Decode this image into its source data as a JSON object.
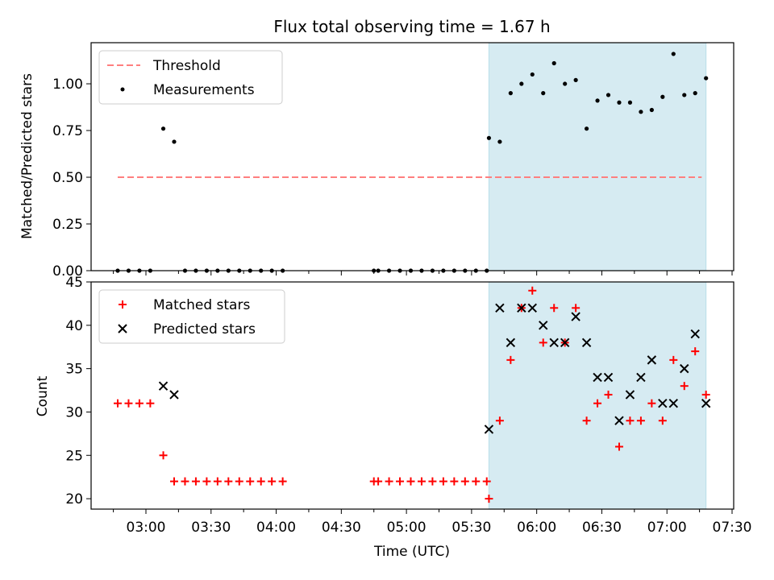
{
  "chart_data": {
    "type": "scatter",
    "title": "Flux total observing time = 1.67 h",
    "xlabel": "Time (UTC)",
    "x_tick_labels": [
      "03:00",
      "03:30",
      "04:00",
      "04:30",
      "05:00",
      "05:30",
      "06:00",
      "06:30",
      "07:00",
      "07:30"
    ],
    "shaded_interval": {
      "start": "05:38",
      "end": "07:18",
      "color": "#add8e6"
    },
    "panels": [
      {
        "ylabel": "Matched/Predicted stars",
        "ylim": [
          0,
          1.22
        ],
        "yticks": [
          "0.00",
          "0.25",
          "0.50",
          "0.75",
          "1.00"
        ],
        "legend_position": "upper left",
        "threshold": {
          "name": "Threshold",
          "value": 0.5,
          "x_range": [
            "02:47",
            "07:16"
          ],
          "color": "#ff7f7f"
        },
        "series": [
          {
            "name": "Measurements",
            "marker": "dot",
            "color": "#000000",
            "x": [
              "02:47",
              "02:52",
              "02:57",
              "03:02",
              "03:08",
              "03:13",
              "03:18",
              "03:23",
              "03:28",
              "03:33",
              "03:38",
              "03:43",
              "03:48",
              "03:53",
              "03:58",
              "04:03",
              "04:45",
              "04:47",
              "04:52",
              "04:57",
              "05:02",
              "05:07",
              "05:12",
              "05:17",
              "05:22",
              "05:27",
              "05:32",
              "05:37",
              "05:38",
              "05:43",
              "05:48",
              "05:53",
              "05:58",
              "06:03",
              "06:08",
              "06:13",
              "06:18",
              "06:23",
              "06:28",
              "06:33",
              "06:38",
              "06:43",
              "06:48",
              "06:53",
              "06:58",
              "07:03",
              "07:08",
              "07:13",
              "07:18"
            ],
            "y": [
              0,
              0,
              0,
              0,
              0.76,
              0.69,
              0,
              0,
              0,
              0,
              0,
              0,
              0,
              0,
              0,
              0,
              0,
              0,
              0,
              0,
              0,
              0,
              0,
              0,
              0,
              0,
              0,
              0,
              0.71,
              0.69,
              0.95,
              1.0,
              1.05,
              0.95,
              1.11,
              1.0,
              1.02,
              0.76,
              0.91,
              0.94,
              0.9,
              0.9,
              0.85,
              0.86,
              0.93,
              1.16,
              0.94,
              0.95,
              1.03
            ]
          }
        ]
      },
      {
        "ylabel": "Count",
        "ylim": [
          18.8,
          45
        ],
        "yticks": [
          "20",
          "25",
          "30",
          "35",
          "40",
          "45"
        ],
        "legend_position": "upper left",
        "series": [
          {
            "name": "Matched stars",
            "marker": "plus",
            "color": "#ff0000",
            "x": [
              "02:47",
              "02:52",
              "02:57",
              "03:02",
              "03:08",
              "03:13",
              "03:18",
              "03:23",
              "03:28",
              "03:33",
              "03:38",
              "03:43",
              "03:48",
              "03:53",
              "03:58",
              "04:03",
              "04:45",
              "04:47",
              "04:52",
              "04:57",
              "05:02",
              "05:07",
              "05:12",
              "05:17",
              "05:22",
              "05:27",
              "05:32",
              "05:37",
              "05:38",
              "05:43",
              "05:48",
              "05:53",
              "05:58",
              "06:03",
              "06:08",
              "06:13",
              "06:18",
              "06:23",
              "06:28",
              "06:33",
              "06:38",
              "06:43",
              "06:48",
              "06:53",
              "06:58",
              "07:03",
              "07:08",
              "07:13",
              "07:18"
            ],
            "y": [
              31,
              31,
              31,
              31,
              25,
              22,
              22,
              22,
              22,
              22,
              22,
              22,
              22,
              22,
              22,
              22,
              22,
              22,
              22,
              22,
              22,
              22,
              22,
              22,
              22,
              22,
              22,
              22,
              20,
              29,
              36,
              42,
              44,
              38,
              42,
              38,
              42,
              29,
              31,
              32,
              26,
              29,
              29,
              31,
              29,
              36,
              33,
              37,
              32
            ]
          },
          {
            "name": "Predicted stars",
            "marker": "x",
            "color": "#000000",
            "x": [
              "03:08",
              "03:13",
              "05:38",
              "05:43",
              "05:48",
              "05:53",
              "05:58",
              "06:03",
              "06:08",
              "06:13",
              "06:18",
              "06:23",
              "06:28",
              "06:33",
              "06:38",
              "06:43",
              "06:48",
              "06:53",
              "06:58",
              "07:03",
              "07:08",
              "07:13",
              "07:18"
            ],
            "y": [
              33,
              32,
              28,
              42,
              38,
              42,
              42,
              40,
              38,
              38,
              41,
              38,
              34,
              34,
              29,
              32,
              34,
              36,
              31,
              31,
              35,
              39,
              31
            ]
          }
        ]
      }
    ]
  }
}
